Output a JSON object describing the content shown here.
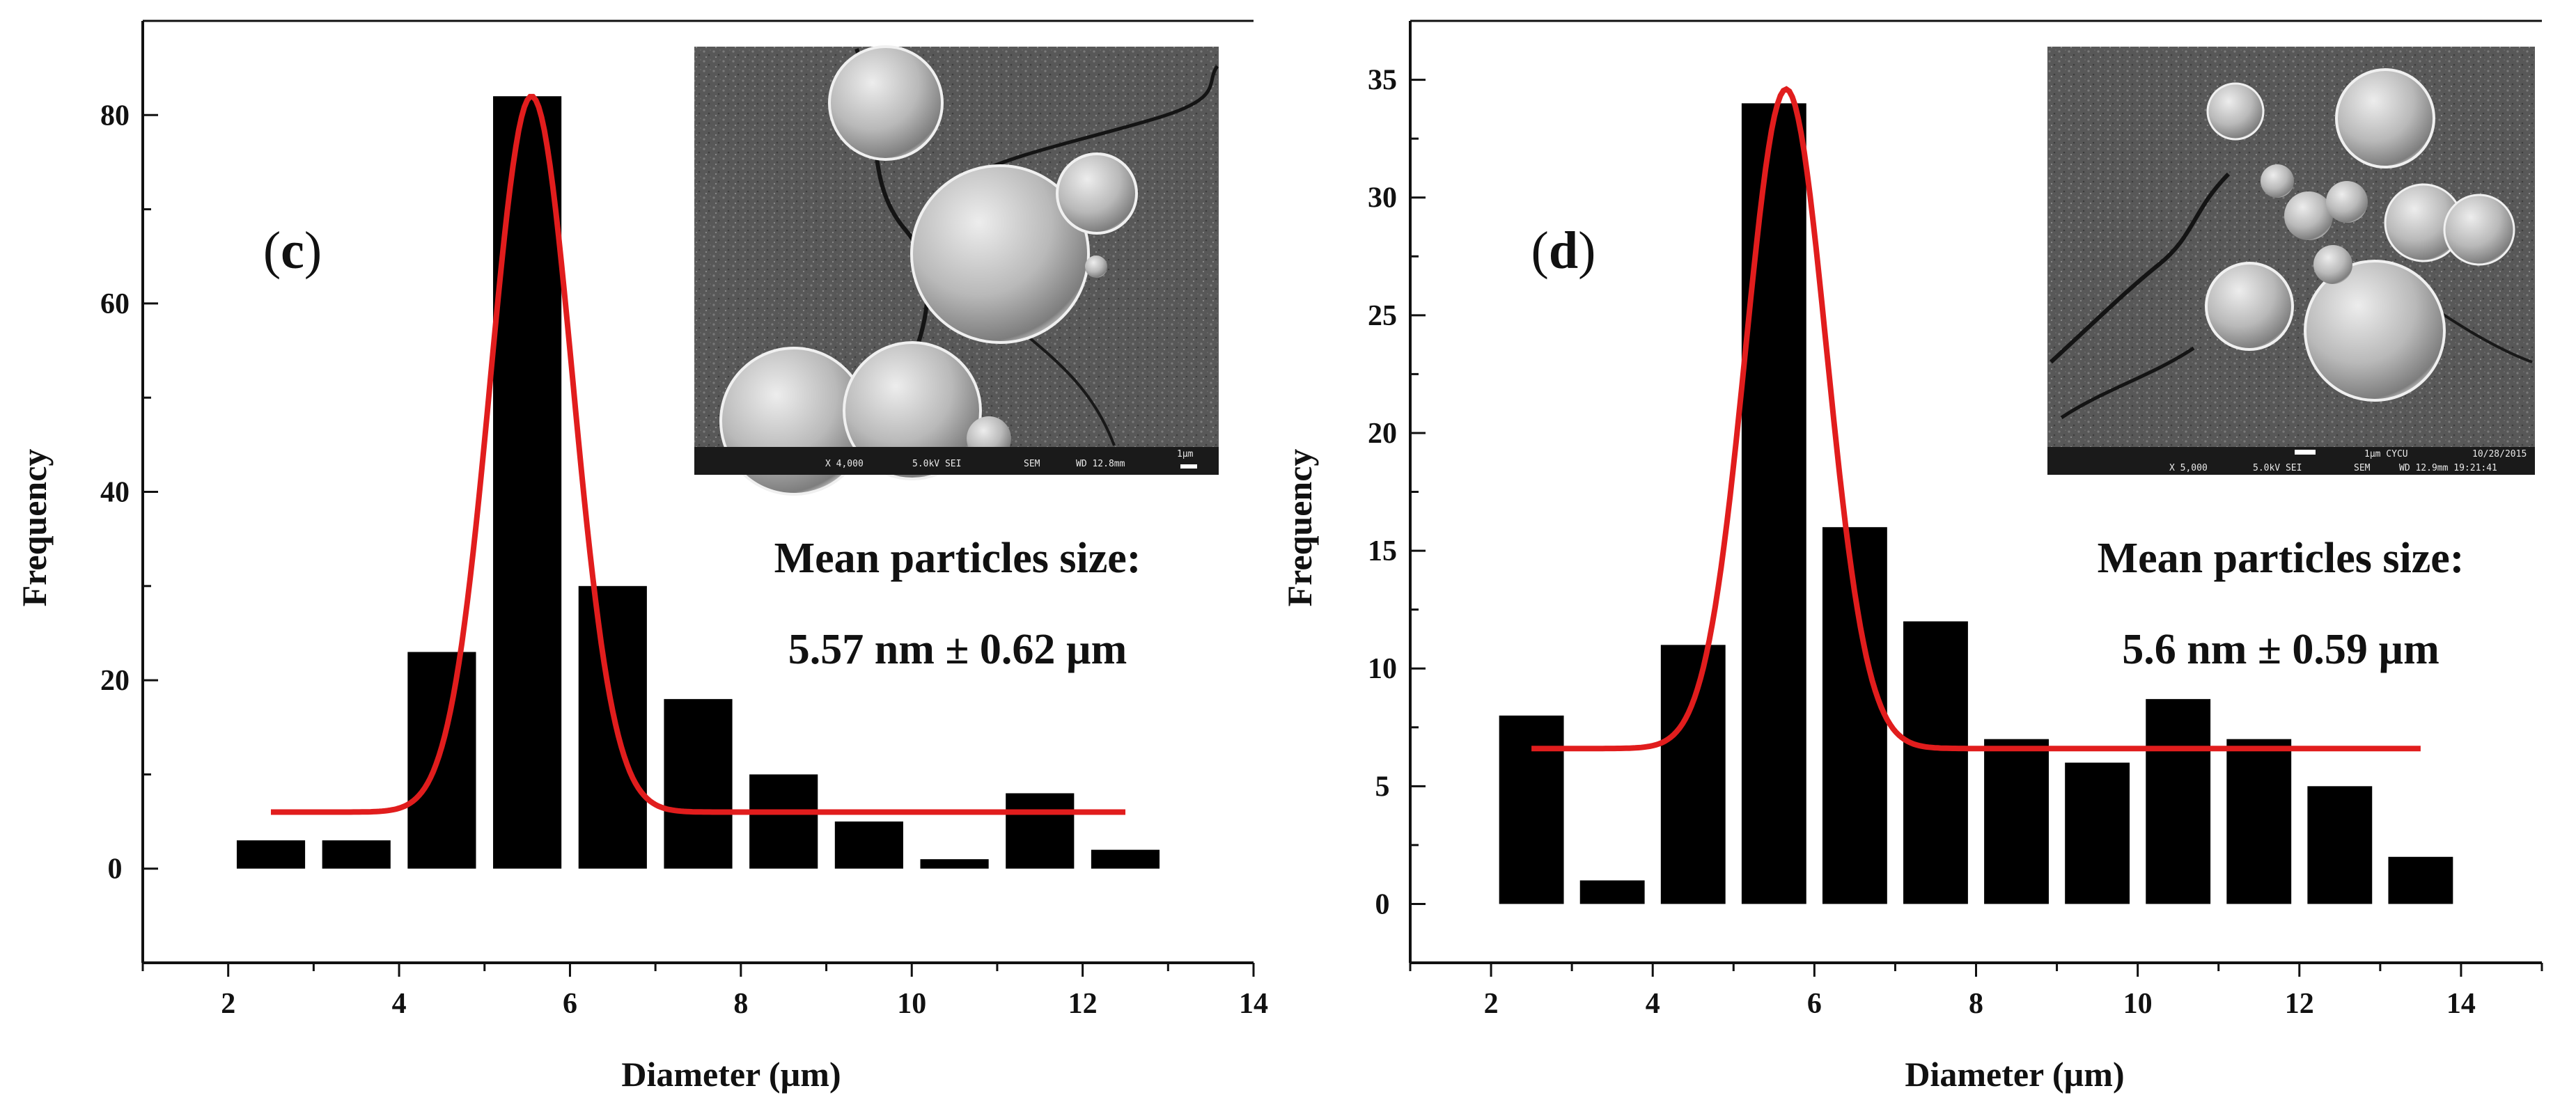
{
  "chart_data": [
    {
      "type": "bar",
      "panel_label": "c",
      "xlabel": "Diameter (µm)",
      "ylabel": "Frequency",
      "xlim": [
        1,
        14
      ],
      "ylim": [
        -10,
        90
      ],
      "x_ticks": [
        2,
        4,
        6,
        8,
        10,
        12,
        14
      ],
      "y_ticks": [
        0,
        20,
        40,
        60,
        80
      ],
      "bars": [
        {
          "x": 2.5,
          "value": 3
        },
        {
          "x": 3.5,
          "value": 3
        },
        {
          "x": 4.5,
          "value": 23
        },
        {
          "x": 5.5,
          "value": 82
        },
        {
          "x": 6.5,
          "value": 30
        },
        {
          "x": 7.5,
          "value": 18
        },
        {
          "x": 8.5,
          "value": 10
        },
        {
          "x": 9.5,
          "value": 5
        },
        {
          "x": 10.5,
          "value": 1
        },
        {
          "x": 11.5,
          "value": 8
        },
        {
          "x": 12.5,
          "value": 2
        }
      ],
      "bar_width": 0.8,
      "fit": {
        "type": "gaussian",
        "color": "#e11d1d",
        "baseline": 6,
        "peak": 82,
        "center": 5.55,
        "sigma": 0.48,
        "x_range": [
          2.5,
          12.5
        ]
      },
      "annotation": {
        "title": "Mean particles size:",
        "value": "5.57 nm ± 0.62 µm"
      },
      "inset": {
        "caption_left": "X 4,000",
        "caption_mid": "5.0kV  SEI",
        "caption_sem": "SEM",
        "caption_wd": "WD 12.8mm",
        "scale": "1µm"
      }
    },
    {
      "type": "bar",
      "panel_label": "d",
      "xlabel": "Diameter (µm)",
      "ylabel": "Frequency",
      "xlim": [
        1,
        15
      ],
      "ylim": [
        -2.5,
        37.5
      ],
      "x_ticks": [
        2,
        4,
        6,
        8,
        10,
        12,
        14
      ],
      "y_ticks": [
        0,
        5,
        10,
        15,
        20,
        25,
        30,
        35
      ],
      "bars": [
        {
          "x": 2.5,
          "value": 8
        },
        {
          "x": 3.5,
          "value": 1
        },
        {
          "x": 4.5,
          "value": 11
        },
        {
          "x": 5.5,
          "value": 34
        },
        {
          "x": 6.5,
          "value": 16
        },
        {
          "x": 7.5,
          "value": 12
        },
        {
          "x": 8.5,
          "value": 7
        },
        {
          "x": 9.5,
          "value": 6
        },
        {
          "x": 10.5,
          "value": 8.7
        },
        {
          "x": 11.5,
          "value": 7
        },
        {
          "x": 12.5,
          "value": 5
        },
        {
          "x": 13.5,
          "value": 2
        }
      ],
      "bar_width": 0.8,
      "fit": {
        "type": "gaussian",
        "color": "#e11d1d",
        "baseline": 6.6,
        "peak": 34.6,
        "center": 5.65,
        "sigma": 0.5,
        "x_range": [
          2.5,
          13.5
        ]
      },
      "annotation": {
        "title": "Mean particles size:",
        "value": "5.6 nm ± 0.59 µm"
      },
      "inset": {
        "caption_left": "X 5,000",
        "caption_mid": "5.0kV  SEI",
        "caption_sem": "SEM",
        "caption_wd": "WD 12.9mm 19:21:41",
        "scale": "1µm  CYCU",
        "date": "10/28/2015"
      }
    }
  ]
}
